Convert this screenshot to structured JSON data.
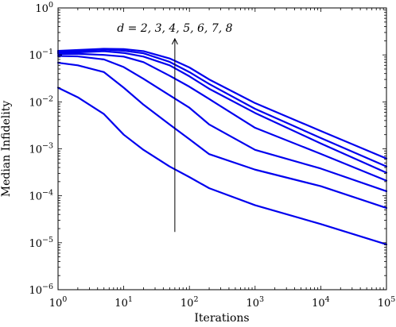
{
  "chart_data": {
    "type": "line",
    "title": "",
    "xlabel": "Iterations",
    "ylabel": "Median Infidelity",
    "x_scale": "log",
    "y_scale": "log",
    "xlim": [
      1,
      100000
    ],
    "ylim": [
      1e-06,
      1
    ],
    "x_ticks": [
      {
        "value": 1,
        "base": "10",
        "exp": "0"
      },
      {
        "value": 10,
        "base": "10",
        "exp": "1"
      },
      {
        "value": 100,
        "base": "10",
        "exp": "2"
      },
      {
        "value": 1000,
        "base": "10",
        "exp": "3"
      },
      {
        "value": 10000,
        "base": "10",
        "exp": "4"
      },
      {
        "value": 100000,
        "base": "10",
        "exp": "5"
      }
    ],
    "y_ticks": [
      {
        "value": 1,
        "base": "10",
        "exp": "0"
      },
      {
        "value": 0.1,
        "base": "10",
        "exp": "−1"
      },
      {
        "value": 0.01,
        "base": "10",
        "exp": "−2"
      },
      {
        "value": 0.001,
        "base": "10",
        "exp": "−3"
      },
      {
        "value": 0.0001,
        "base": "10",
        "exp": "−4"
      },
      {
        "value": 1e-05,
        "base": "10",
        "exp": "−5"
      },
      {
        "value": 1e-06,
        "base": "10",
        "exp": "−6"
      }
    ],
    "grid": false,
    "line_color": "#0000ee",
    "series": [
      {
        "x": [
          1,
          2,
          5,
          10,
          20,
          50,
          100,
          200,
          1000,
          10000,
          100000
        ],
        "y": [
          0.02,
          0.0125,
          0.0055,
          0.002,
          0.00095,
          0.00042,
          0.00025,
          0.000145,
          6.3e-05,
          2.5e-05,
          9.2e-06
        ]
      },
      {
        "x": [
          1,
          2,
          5,
          10,
          20,
          50,
          100,
          200,
          1000,
          10000,
          100000
        ],
        "y": [
          0.068,
          0.06,
          0.043,
          0.02,
          0.0087,
          0.0033,
          0.0016,
          0.00077,
          0.00036,
          0.00016,
          5.5e-05
        ]
      },
      {
        "x": [
          1,
          2,
          5,
          10,
          20,
          50,
          100,
          200,
          1000,
          10000,
          100000
        ],
        "y": [
          0.095,
          0.093,
          0.08,
          0.055,
          0.031,
          0.0138,
          0.0075,
          0.0033,
          0.00095,
          0.00038,
          0.000125
        ]
      },
      {
        "x": [
          1,
          2,
          5,
          10,
          20,
          50,
          100,
          200,
          1000,
          10000,
          100000
        ],
        "y": [
          0.105,
          0.105,
          0.1,
          0.092,
          0.07,
          0.036,
          0.021,
          0.0115,
          0.0028,
          0.00078,
          0.00021
        ]
      },
      {
        "x": [
          1,
          2,
          5,
          10,
          20,
          50,
          100,
          200,
          1000,
          10000,
          100000
        ],
        "y": [
          0.112,
          0.113,
          0.12,
          0.11,
          0.092,
          0.06,
          0.035,
          0.019,
          0.0058,
          0.0013,
          0.00031
        ]
      },
      {
        "x": [
          1,
          2,
          5,
          10,
          20,
          50,
          100,
          200,
          1000,
          10000,
          100000
        ],
        "y": [
          0.118,
          0.122,
          0.13,
          0.123,
          0.108,
          0.071,
          0.043,
          0.024,
          0.0071,
          0.0017,
          0.00042
        ]
      },
      {
        "x": [
          1,
          2,
          5,
          10,
          20,
          50,
          100,
          200,
          1000,
          10000,
          100000
        ],
        "y": [
          0.122,
          0.127,
          0.135,
          0.133,
          0.12,
          0.084,
          0.054,
          0.03,
          0.0094,
          0.0024,
          0.00062
        ]
      }
    ],
    "annotation": {
      "text": "d = 2, 3, 4, 5, 6, 7, 8",
      "arrow_x": 60,
      "arrow_from_y": 1.7e-05,
      "arrow_to_y": 0.22
    }
  }
}
